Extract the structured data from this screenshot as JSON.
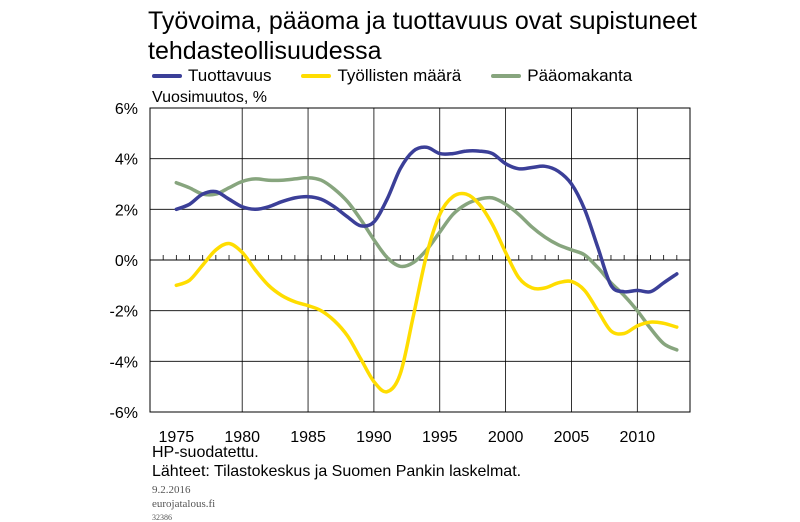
{
  "chart_data": {
    "type": "line",
    "title_line1": "Työvoima, pääoma ja tuottavuus ovat supistuneet",
    "title_line2": "tehdasteollisuudessa",
    "ylabel": "Vuosimuutos, %",
    "xlim": [
      1973,
      2014
    ],
    "ylim": [
      -6,
      6
    ],
    "grid": true,
    "legend_position": "top",
    "yticks": [
      {
        "value": 6,
        "label": "6%"
      },
      {
        "value": 4,
        "label": "4%"
      },
      {
        "value": 2,
        "label": "2%"
      },
      {
        "value": 0,
        "label": "0%"
      },
      {
        "value": -2,
        "label": "-2%"
      },
      {
        "value": -4,
        "label": "-4%"
      },
      {
        "value": -6,
        "label": "-6%"
      }
    ],
    "xticks": [
      {
        "value": 1975,
        "label": "1975"
      },
      {
        "value": 1980,
        "label": "1980"
      },
      {
        "value": 1985,
        "label": "1985"
      },
      {
        "value": 1990,
        "label": "1990"
      },
      {
        "value": 1995,
        "label": "1995"
      },
      {
        "value": 2000,
        "label": "2000"
      },
      {
        "value": 2005,
        "label": "2005"
      },
      {
        "value": 2010,
        "label": "2010"
      }
    ],
    "series": [
      {
        "name": "Tuottavuus",
        "color": "#3b3f98",
        "x": [
          1975,
          1976,
          1977,
          1978,
          1979,
          1980,
          1981,
          1982,
          1983,
          1984,
          1985,
          1986,
          1987,
          1988,
          1989,
          1990,
          1991,
          1992,
          1993,
          1994,
          1995,
          1996,
          1997,
          1998,
          1999,
          2000,
          2001,
          2002,
          2003,
          2004,
          2005,
          2006,
          2007,
          2008,
          2009,
          2010,
          2011,
          2012,
          2013
        ],
        "y": [
          2.0,
          2.2,
          2.6,
          2.7,
          2.4,
          2.1,
          2.0,
          2.1,
          2.3,
          2.45,
          2.5,
          2.4,
          2.1,
          1.7,
          1.35,
          1.5,
          2.4,
          3.6,
          4.3,
          4.45,
          4.2,
          4.2,
          4.3,
          4.3,
          4.2,
          3.8,
          3.6,
          3.65,
          3.7,
          3.5,
          3.0,
          2.0,
          0.5,
          -1.0,
          -1.25,
          -1.2,
          -1.25,
          -0.9,
          -0.55
        ]
      },
      {
        "name": "Työllisten määrä",
        "color": "#ffdd00",
        "x": [
          1975,
          1976,
          1977,
          1978,
          1979,
          1980,
          1981,
          1982,
          1983,
          1984,
          1985,
          1986,
          1987,
          1988,
          1989,
          1990,
          1991,
          1992,
          1993,
          1994,
          1995,
          1996,
          1997,
          1998,
          1999,
          2000,
          2001,
          2002,
          2003,
          2004,
          2005,
          2006,
          2007,
          2008,
          2009,
          2010,
          2011,
          2012,
          2013
        ],
        "y": [
          -1.0,
          -0.8,
          -0.2,
          0.4,
          0.65,
          0.3,
          -0.4,
          -1.0,
          -1.4,
          -1.65,
          -1.8,
          -2.0,
          -2.4,
          -3.0,
          -3.9,
          -4.8,
          -5.2,
          -4.5,
          -2.2,
          0.2,
          1.8,
          2.5,
          2.6,
          2.2,
          1.4,
          0.3,
          -0.7,
          -1.1,
          -1.1,
          -0.9,
          -0.85,
          -1.2,
          -2.0,
          -2.8,
          -2.9,
          -2.6,
          -2.45,
          -2.5,
          -2.65
        ]
      },
      {
        "name": "Pääomakanta",
        "color": "#87a57e",
        "x": [
          1975,
          1976,
          1977,
          1978,
          1979,
          1980,
          1981,
          1982,
          1983,
          1984,
          1985,
          1986,
          1987,
          1988,
          1989,
          1990,
          1991,
          1992,
          1993,
          1994,
          1995,
          1996,
          1997,
          1998,
          1999,
          2000,
          2001,
          2002,
          2003,
          2004,
          2005,
          2006,
          2007,
          2008,
          2009,
          2010,
          2011,
          2012,
          2013
        ],
        "y": [
          3.05,
          2.85,
          2.6,
          2.6,
          2.85,
          3.1,
          3.2,
          3.15,
          3.15,
          3.2,
          3.25,
          3.15,
          2.8,
          2.3,
          1.6,
          0.8,
          0.1,
          -0.25,
          -0.1,
          0.4,
          1.1,
          1.8,
          2.2,
          2.4,
          2.45,
          2.2,
          1.8,
          1.3,
          0.9,
          0.6,
          0.4,
          0.2,
          -0.3,
          -0.9,
          -1.4,
          -2.0,
          -2.7,
          -3.3,
          -3.55
        ]
      }
    ]
  },
  "footnotes": {
    "line1": "HP-suodatettu.",
    "line2": "Lähteet: Tilastokeskus ja Suomen Pankin laskelmat.",
    "date": "9.2.2016",
    "site": "eurojatalous.fi",
    "code": "32386"
  }
}
